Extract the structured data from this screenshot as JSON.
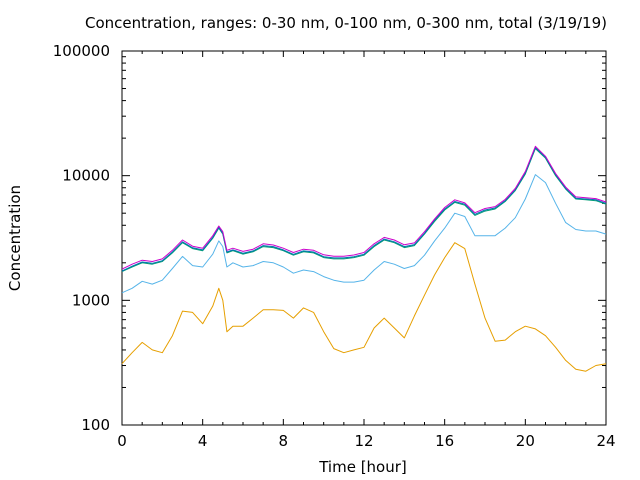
{
  "chart_data": {
    "type": "line",
    "title": "Concentration, ranges: 0-30 nm, 0-100 nm, 0-300 nm, total (3/19/19)",
    "xlabel": "Time [hour]",
    "ylabel": "Concentration",
    "xlim": [
      0,
      24
    ],
    "ylim": [
      100,
      100000
    ],
    "yscale": "log",
    "x_ticks": [
      0,
      4,
      8,
      12,
      16,
      20,
      24
    ],
    "y_ticks": [
      100,
      1000,
      10000,
      100000
    ],
    "x_tick_labels": [
      "0",
      "4",
      "8",
      "12",
      "16",
      "20",
      "24"
    ],
    "y_tick_labels": [
      "100",
      "1000",
      "10000",
      "100000"
    ],
    "grid": false,
    "legend": "none",
    "x": [
      0,
      0.5,
      1,
      1.5,
      2,
      2.5,
      3,
      3.5,
      4,
      4.5,
      4.8,
      5,
      5.2,
      5.5,
      6,
      6.5,
      7,
      7.5,
      8,
      8.5,
      9,
      9.5,
      10,
      10.5,
      11,
      11.5,
      12,
      12.5,
      13,
      13.5,
      14,
      14.5,
      15,
      15.5,
      16,
      16.5,
      17,
      17.5,
      18,
      18.5,
      19,
      19.5,
      20,
      20.5,
      21,
      21.5,
      22,
      22.5,
      23,
      23.5,
      24
    ],
    "series": [
      {
        "color": "#e69f00",
        "values": [
          310,
          380,
          460,
          400,
          380,
          520,
          820,
          800,
          650,
          900,
          1250,
          1000,
          560,
          620,
          620,
          720,
          840,
          840,
          830,
          720,
          870,
          800,
          560,
          410,
          380,
          400,
          420,
          600,
          720,
          600,
          500,
          750,
          1100,
          1600,
          2200,
          2900,
          2600,
          1350,
          720,
          470,
          480,
          560,
          620,
          590,
          520,
          420,
          330,
          280,
          270,
          300,
          310
        ]
      },
      {
        "color": "#56b4e9",
        "values": [
          1150,
          1250,
          1420,
          1350,
          1450,
          1800,
          2250,
          1900,
          1850,
          2350,
          3000,
          2700,
          1850,
          2000,
          1850,
          1900,
          2050,
          2000,
          1850,
          1650,
          1750,
          1700,
          1550,
          1450,
          1400,
          1400,
          1450,
          1750,
          2050,
          1950,
          1800,
          1900,
          2300,
          3000,
          3800,
          5000,
          4700,
          3300,
          3300,
          3300,
          3800,
          4600,
          6500,
          10200,
          8800,
          6000,
          4200,
          3700,
          3600,
          3600,
          3400
        ]
      },
      {
        "color": "#009e73",
        "values": [
          1700,
          1850,
          2000,
          1950,
          2050,
          2400,
          2900,
          2600,
          2500,
          3150,
          3800,
          3400,
          2400,
          2500,
          2350,
          2450,
          2700,
          2650,
          2500,
          2300,
          2450,
          2400,
          2200,
          2150,
          2150,
          2200,
          2300,
          2700,
          3050,
          2900,
          2650,
          2750,
          3400,
          4300,
          5300,
          6100,
          5800,
          4800,
          5200,
          5400,
          6200,
          7600,
          10300,
          16500,
          13800,
          10000,
          7800,
          6500,
          6400,
          6300,
          5900
        ]
      },
      {
        "color": "#0072b2",
        "values": [
          1720,
          1880,
          2030,
          1980,
          2080,
          2440,
          2950,
          2640,
          2540,
          3200,
          3850,
          3450,
          2440,
          2540,
          2390,
          2490,
          2750,
          2700,
          2540,
          2340,
          2490,
          2440,
          2240,
          2190,
          2190,
          2240,
          2340,
          2750,
          3100,
          2950,
          2700,
          2800,
          3450,
          4400,
          5400,
          6200,
          5900,
          4900,
          5300,
          5500,
          6300,
          7700,
          10500,
          16800,
          14000,
          10200,
          7900,
          6600,
          6500,
          6400,
          6000
        ]
      },
      {
        "color": "#cc00cc",
        "values": [
          1780,
          1950,
          2100,
          2050,
          2150,
          2520,
          3050,
          2720,
          2620,
          3300,
          3950,
          3550,
          2520,
          2620,
          2470,
          2570,
          2840,
          2780,
          2620,
          2420,
          2570,
          2520,
          2320,
          2260,
          2260,
          2310,
          2420,
          2840,
          3200,
          3050,
          2790,
          2890,
          3550,
          4500,
          5550,
          6400,
          6050,
          5050,
          5450,
          5650,
          6450,
          7900,
          10800,
          17200,
          14300,
          10400,
          8100,
          6750,
          6650,
          6550,
          6150
        ]
      }
    ]
  }
}
